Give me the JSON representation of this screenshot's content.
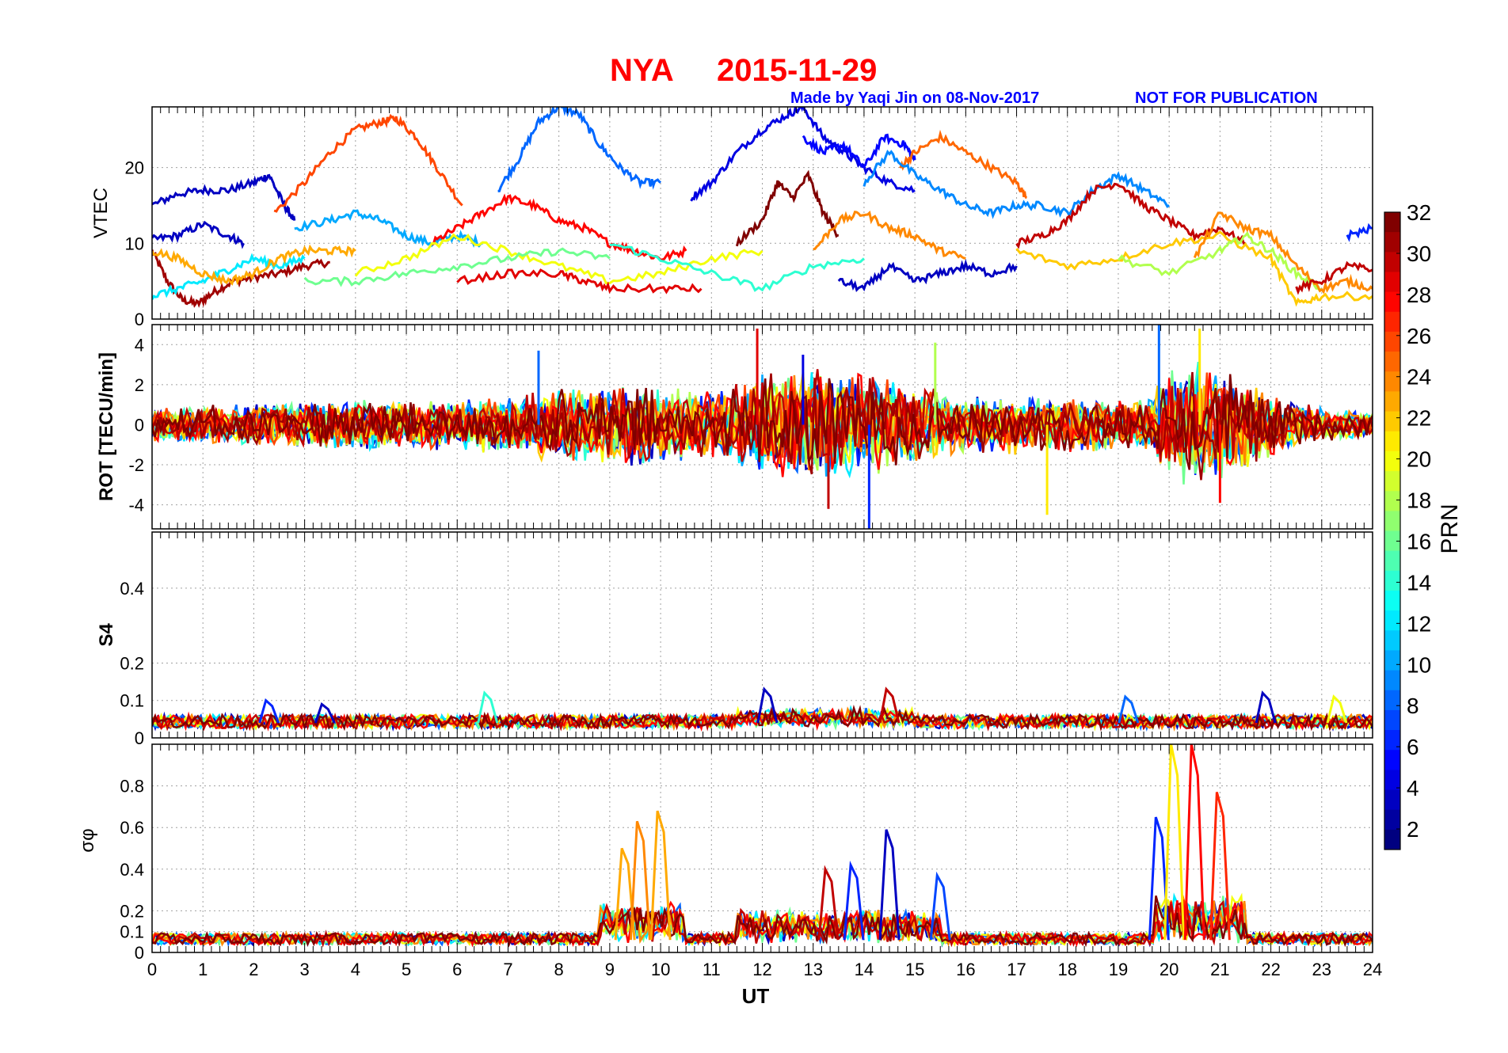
{
  "figure": {
    "title_station": "NYA",
    "title_date": "2015-11-29",
    "credit": "Made by Yaqi Jin on 08-Nov-2017",
    "notice": "NOT FOR PUBLICATION",
    "xlabel": "UT",
    "colorbar_label": "PRN",
    "colorbar_ticks": [
      "2",
      "4",
      "6",
      "8",
      "10",
      "12",
      "14",
      "16",
      "18",
      "20",
      "22",
      "24",
      "26",
      "28",
      "30",
      "32"
    ]
  },
  "chart_data": [
    {
      "type": "line",
      "panel": "vtec",
      "ylabel": "VTEC",
      "xlim": [
        0,
        24
      ],
      "ylim": [
        0,
        28
      ],
      "yticks": [
        "0",
        "10",
        "20"
      ],
      "ytick_values": [
        0,
        10,
        20
      ],
      "series": [
        {
          "prn": 31,
          "x": [
            0,
            0.3,
            0.6,
            0.9,
            1.2,
            1.6,
            2.0,
            2.5,
            3.0,
            3.5
          ],
          "y": [
            9,
            5,
            2.5,
            2,
            3.5,
            5,
            5.5,
            6,
            7,
            7.5
          ]
        },
        {
          "prn": 3,
          "x": [
            0,
            0.5,
            1.0,
            1.5,
            2.0,
            2.3,
            2.6,
            2.8
          ],
          "y": [
            15,
            16.5,
            17,
            17,
            18,
            19,
            15,
            13
          ]
        },
        {
          "prn": 3,
          "x": [
            0,
            0.5,
            1.0,
            1.5,
            1.8
          ],
          "y": [
            10.5,
            11,
            12.5,
            11,
            10
          ]
        },
        {
          "prn": 26,
          "x": [
            2.4,
            3.0,
            3.5,
            4.0,
            4.5,
            4.8,
            5.2,
            5.6,
            6.1
          ],
          "y": [
            14,
            18,
            22,
            25,
            26,
            26.5,
            24,
            20,
            15
          ]
        },
        {
          "prn": 10,
          "x": [
            2.8,
            3.5,
            4.0,
            4.5,
            5.0,
            5.5,
            6.0,
            6.5
          ],
          "y": [
            12,
            13,
            14,
            13,
            11,
            10,
            11,
            10
          ]
        },
        {
          "prn": 8,
          "x": [
            6.8,
            7.2,
            7.6,
            8.0,
            8.4,
            8.8,
            9.2,
            9.6,
            10.0
          ],
          "y": [
            17,
            21,
            26,
            28,
            27,
            23,
            20,
            18,
            18
          ]
        },
        {
          "prn": 28,
          "x": [
            5.5,
            6.0,
            6.5,
            7.0,
            7.5,
            8.0,
            8.5,
            9.0,
            9.5,
            10.0,
            10.5
          ],
          "y": [
            10,
            12,
            14,
            16,
            15,
            13,
            12,
            10,
            9,
            8,
            9
          ]
        },
        {
          "prn": 4,
          "x": [
            10.6,
            11.0,
            11.5,
            12.0,
            12.5,
            12.8,
            13.2,
            13.6,
            14.0,
            14.5,
            15.0
          ],
          "y": [
            16,
            18,
            22,
            25,
            27,
            28,
            24,
            22,
            20,
            18,
            17
          ]
        },
        {
          "prn": 5,
          "x": [
            12.8,
            13.2,
            13.6,
            14.0,
            14.4,
            14.8,
            15.0
          ],
          "y": [
            24,
            22,
            23,
            20,
            24,
            23,
            21
          ]
        },
        {
          "prn": 25,
          "x": [
            14.7,
            15.0,
            15.5,
            16.0,
            16.5,
            17.0,
            17.2
          ],
          "y": [
            20,
            22,
            24,
            22,
            20,
            18,
            16
          ]
        },
        {
          "prn": 9,
          "x": [
            14.0,
            14.5,
            15.0,
            15.5,
            16.0,
            16.5,
            17.0,
            17.5,
            18.0,
            18.5,
            19.0,
            19.5,
            20.0
          ],
          "y": [
            18,
            22,
            19,
            17,
            15,
            14,
            15,
            15,
            14,
            17,
            19,
            17,
            15
          ]
        },
        {
          "prn": 30,
          "x": [
            17.0,
            17.5,
            18.0,
            18.5,
            19.0,
            19.5,
            20.0,
            20.5,
            21.0,
            21.5
          ],
          "y": [
            10,
            11,
            13,
            17,
            18,
            15,
            13,
            11,
            12,
            10
          ]
        },
        {
          "prn": 32,
          "x": [
            11.5,
            12.0,
            12.3,
            12.6,
            12.9,
            13.2,
            13.5
          ],
          "y": [
            10,
            13,
            18,
            16,
            19,
            14,
            11
          ]
        },
        {
          "prn": 12,
          "x": [
            0,
            0.5,
            1.0,
            1.5,
            2.0,
            2.5,
            3.0
          ],
          "y": [
            3,
            4,
            5,
            6.5,
            8,
            7,
            8
          ]
        },
        {
          "prn": 23,
          "x": [
            0,
            0.5,
            1.0,
            1.5,
            2.0,
            2.5,
            3.0,
            3.5,
            4.0
          ],
          "y": [
            9,
            8,
            6,
            5,
            6,
            8,
            9,
            9,
            9
          ]
        },
        {
          "prn": 20,
          "x": [
            4.0,
            5.0,
            6.0,
            7.0,
            8.0,
            9.0,
            10.0,
            11.0,
            12.0
          ],
          "y": [
            6,
            8,
            11,
            9,
            7,
            5,
            6,
            8,
            9
          ]
        },
        {
          "prn": 16,
          "x": [
            3.0,
            4.0,
            5.0,
            6.0,
            7.0,
            8.0,
            9.0
          ],
          "y": [
            5,
            5,
            6,
            7,
            8,
            9,
            8
          ]
        },
        {
          "prn": 14,
          "x": [
            9.0,
            10.0,
            11.0,
            12.0,
            13.0,
            14.0
          ],
          "y": [
            10,
            8,
            6,
            4,
            7,
            8
          ]
        },
        {
          "prn": 24,
          "x": [
            13.0,
            13.5,
            14.0,
            14.5,
            15.0,
            15.5,
            16.0
          ],
          "y": [
            9,
            13,
            14,
            12,
            11,
            9,
            8
          ]
        },
        {
          "prn": 22,
          "x": [
            17.0,
            18.0,
            19.0,
            20.0,
            21.0,
            22.0,
            22.5,
            23.0,
            24.0
          ],
          "y": [
            9,
            7,
            8,
            10,
            11,
            8,
            2,
            3,
            3
          ]
        },
        {
          "prn": 18,
          "x": [
            19.0,
            20.0,
            21.0,
            21.5,
            22.0,
            22.5,
            23.0
          ],
          "y": [
            8,
            6,
            9,
            11,
            9,
            6,
            4
          ]
        },
        {
          "prn": 24,
          "x": [
            20.5,
            21.0,
            21.5,
            22.0,
            22.5,
            23.0,
            23.5,
            24.0
          ],
          "y": [
            8,
            14,
            12,
            11,
            7,
            4,
            5,
            4
          ]
        },
        {
          "prn": 30,
          "x": [
            22.5,
            23.0,
            23.5,
            24.0
          ],
          "y": [
            4,
            5,
            7,
            6.5
          ]
        },
        {
          "prn": 6,
          "x": [
            23.5,
            24.0
          ],
          "y": [
            11,
            12
          ]
        },
        {
          "prn": 29,
          "x": [
            6.0,
            7.0,
            8.0,
            8.5,
            9.0,
            10.0,
            10.8
          ],
          "y": [
            5,
            6,
            6,
            5,
            4,
            4,
            4
          ]
        },
        {
          "prn": 3,
          "x": [
            13.5,
            14.0,
            14.5,
            15.0,
            15.5,
            16.0,
            16.5,
            17.0
          ],
          "y": [
            5,
            4,
            7,
            5,
            6,
            7,
            6,
            7
          ]
        }
      ]
    },
    {
      "type": "line",
      "panel": "rot",
      "ylabel": "ROT [TECU/min]",
      "xlim": [
        0,
        24
      ],
      "ylim": [
        -5.2,
        5
      ],
      "yticks": [
        "-4",
        "-2",
        "0",
        "2",
        "4"
      ],
      "ytick_values": [
        -4,
        -2,
        0,
        2,
        4
      ],
      "envelope": [
        {
          "x": 0,
          "amp": 1.0
        },
        {
          "x": 2,
          "amp": 1.3
        },
        {
          "x": 4,
          "amp": 1.6
        },
        {
          "x": 6,
          "amp": 1.5
        },
        {
          "x": 8,
          "amp": 2.2
        },
        {
          "x": 9.5,
          "amp": 2.5
        },
        {
          "x": 11,
          "amp": 2.0
        },
        {
          "x": 12,
          "amp": 3.5
        },
        {
          "x": 13,
          "amp": 3.5
        },
        {
          "x": 14,
          "amp": 3.2
        },
        {
          "x": 15,
          "amp": 2.5
        },
        {
          "x": 16,
          "amp": 1.8
        },
        {
          "x": 18,
          "amp": 1.8
        },
        {
          "x": 19.5,
          "amp": 1.5
        },
        {
          "x": 20.3,
          "amp": 4.0
        },
        {
          "x": 21,
          "amp": 3.5
        },
        {
          "x": 22,
          "amp": 2.0
        },
        {
          "x": 23,
          "amp": 1.0
        },
        {
          "x": 24,
          "amp": 0.8
        }
      ],
      "spikes": [
        {
          "x": 7.6,
          "y": 3.7,
          "prn": 8
        },
        {
          "x": 11.9,
          "y": 4.8,
          "prn": 29
        },
        {
          "x": 12.8,
          "y": 3.5,
          "prn": 4
        },
        {
          "x": 14.1,
          "y": -5.2,
          "prn": 6
        },
        {
          "x": 13.3,
          "y": -4.2,
          "prn": 30
        },
        {
          "x": 17.6,
          "y": -4.5,
          "prn": 21
        },
        {
          "x": 19.8,
          "y": 5.0,
          "prn": 8
        },
        {
          "x": 20.6,
          "y": 4.8,
          "prn": 21
        },
        {
          "x": 21.0,
          "y": -3.9,
          "prn": 28
        },
        {
          "x": 15.4,
          "y": 4.1,
          "prn": 18
        }
      ]
    },
    {
      "type": "line",
      "panel": "s4",
      "ylabel": "S4",
      "xlim": [
        0,
        24
      ],
      "ylim": [
        0,
        0.55
      ],
      "yticks": [
        "0",
        "0.1",
        "0.2",
        "0.4"
      ],
      "ytick_values": [
        0,
        0.1,
        0.2,
        0.4
      ],
      "baseline": 0.04,
      "peaks": [
        {
          "x": 2.3,
          "y": 0.1,
          "prn": 6
        },
        {
          "x": 3.4,
          "y": 0.09,
          "prn": 3
        },
        {
          "x": 6.6,
          "y": 0.12,
          "prn": 14
        },
        {
          "x": 12.1,
          "y": 0.13,
          "prn": 3
        },
        {
          "x": 14.5,
          "y": 0.13,
          "prn": 30
        },
        {
          "x": 19.2,
          "y": 0.11,
          "prn": 8
        },
        {
          "x": 21.9,
          "y": 0.12,
          "prn": 3
        },
        {
          "x": 23.3,
          "y": 0.11,
          "prn": 20
        }
      ]
    },
    {
      "type": "line",
      "panel": "sigma_phi",
      "ylabel": "σφ",
      "xlim": [
        0,
        24
      ],
      "ylim": [
        0,
        1
      ],
      "yticks": [
        "0",
        "0.1",
        "0.2",
        "0.4",
        "0.6",
        "0.8"
      ],
      "ytick_values": [
        0,
        0.1,
        0.2,
        0.4,
        0.6,
        0.8
      ],
      "baseline": 0.06,
      "peaks": [
        {
          "x": 9.3,
          "y": 0.5,
          "prn": 23
        },
        {
          "x": 9.6,
          "y": 0.63,
          "prn": 24
        },
        {
          "x": 10.0,
          "y": 0.68,
          "prn": 23
        },
        {
          "x": 13.3,
          "y": 0.4,
          "prn": 30
        },
        {
          "x": 13.8,
          "y": 0.42,
          "prn": 6
        },
        {
          "x": 14.5,
          "y": 0.59,
          "prn": 3
        },
        {
          "x": 15.5,
          "y": 0.37,
          "prn": 7
        },
        {
          "x": 19.8,
          "y": 0.65,
          "prn": 6
        },
        {
          "x": 20.1,
          "y": 1.0,
          "prn": 21
        },
        {
          "x": 20.5,
          "y": 1.0,
          "prn": 28
        },
        {
          "x": 21.0,
          "y": 0.77,
          "prn": 27
        }
      ]
    }
  ],
  "colors": {
    "title": "#ff0000",
    "credit": "#0000ff"
  }
}
